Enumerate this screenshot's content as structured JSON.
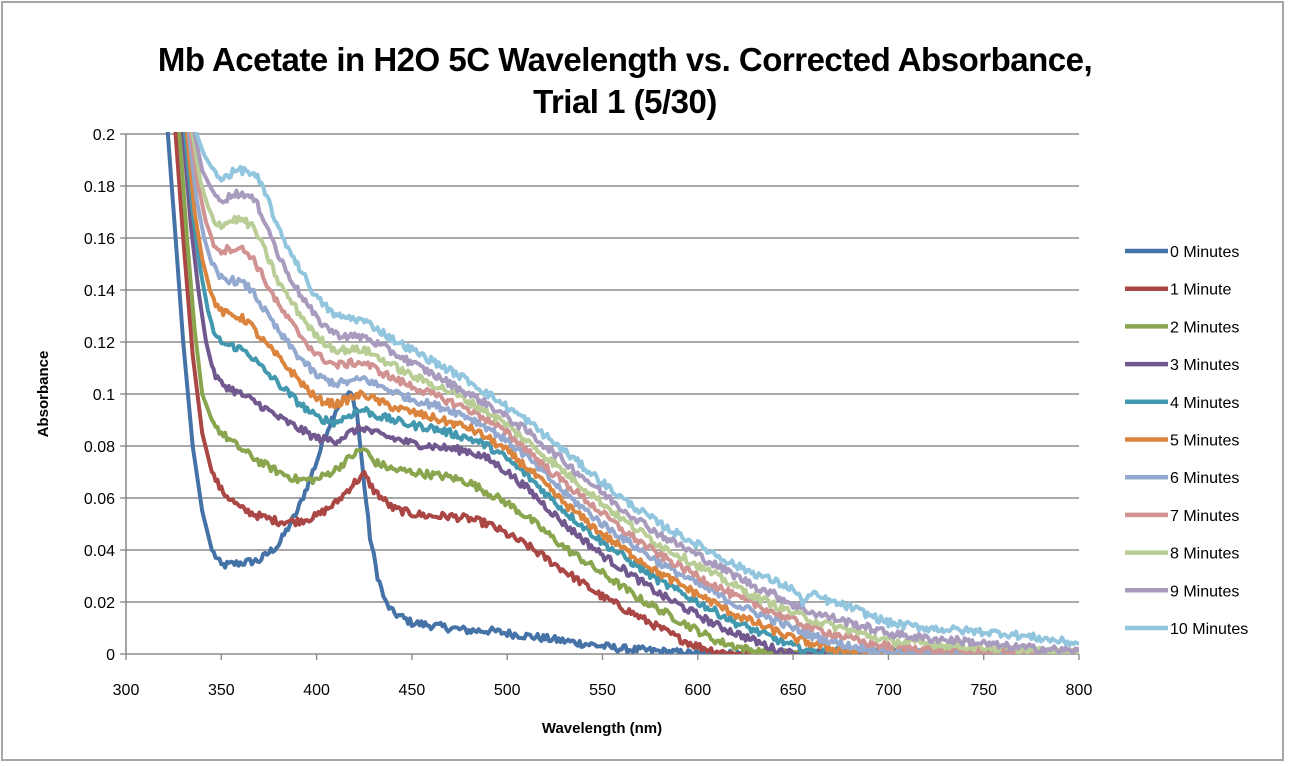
{
  "chart_data": {
    "type": "line",
    "title": "Mb Acetate in H2O 5C Wavelength vs. Corrected Absorbance, Trial 1 (5/30)",
    "title_lines": [
      "Mb Acetate in H2O 5C Wavelength vs. Corrected Absorbance,",
      "Trial 1 (5/30)"
    ],
    "xlabel": "Wavelength (nm)",
    "ylabel": "Absorbance",
    "xlim": [
      300,
      800
    ],
    "ylim": [
      0,
      0.2
    ],
    "x_ticks": [
      300,
      350,
      400,
      450,
      500,
      550,
      600,
      650,
      700,
      750,
      800
    ],
    "x_tick_labels": [
      "300",
      "350",
      "400",
      "450",
      "500",
      "550",
      "600",
      "650",
      "700",
      "750",
      "800"
    ],
    "y_ticks": [
      0,
      0.02,
      0.04,
      0.06,
      0.08,
      0.1,
      0.12,
      0.14,
      0.16,
      0.18,
      0.2
    ],
    "y_tick_labels": [
      "0",
      "0.02",
      "0.04",
      "0.06",
      "0.08",
      "0.1",
      "0.12",
      "0.14",
      "0.16",
      "0.18",
      "0.2"
    ],
    "grid": "horizontal",
    "legend_position": "right",
    "series": [
      {
        "name": "0 Minutes",
        "color": "#4572a7",
        "x": [
          318,
          322,
          326,
          330,
          335,
          340,
          345,
          350,
          360,
          370,
          380,
          390,
          400,
          405,
          410,
          415,
          418,
          421,
          425,
          428,
          432,
          436,
          440,
          450,
          460,
          470,
          480,
          490,
          500,
          510,
          520,
          530,
          540,
          550,
          560,
          570,
          580,
          590,
          600,
          650,
          700,
          750,
          800
        ],
        "y": [
          0.25,
          0.2,
          0.16,
          0.12,
          0.08,
          0.055,
          0.04,
          0.034,
          0.035,
          0.036,
          0.042,
          0.055,
          0.074,
          0.085,
          0.094,
          0.099,
          0.1,
          0.094,
          0.065,
          0.045,
          0.03,
          0.02,
          0.016,
          0.012,
          0.011,
          0.01,
          0.009,
          0.009,
          0.008,
          0.007,
          0.006,
          0.005,
          0.004,
          0.003,
          0.002,
          0.0015,
          0.001,
          0.0005,
          0,
          0,
          0,
          0,
          0
        ]
      },
      {
        "name": "1 Minute",
        "color": "#aa4643",
        "x": [
          322,
          326,
          330,
          335,
          340,
          345,
          350,
          360,
          370,
          380,
          390,
          400,
          410,
          420,
          425,
          430,
          440,
          450,
          460,
          470,
          480,
          490,
          500,
          510,
          520,
          530,
          540,
          550,
          560,
          570,
          580,
          590,
          600,
          610,
          620,
          800
        ],
        "y": [
          0.25,
          0.2,
          0.16,
          0.115,
          0.085,
          0.07,
          0.063,
          0.056,
          0.053,
          0.051,
          0.051,
          0.053,
          0.058,
          0.066,
          0.069,
          0.063,
          0.056,
          0.054,
          0.053,
          0.053,
          0.052,
          0.05,
          0.046,
          0.042,
          0.037,
          0.032,
          0.027,
          0.022,
          0.018,
          0.014,
          0.01,
          0.006,
          0.003,
          0.001,
          0,
          0
        ]
      },
      {
        "name": "2 Minutes",
        "color": "#89a54e",
        "x": [
          324,
          328,
          332,
          336,
          340,
          345,
          350,
          360,
          370,
          380,
          390,
          400,
          410,
          420,
          425,
          430,
          440,
          450,
          460,
          470,
          480,
          490,
          500,
          510,
          520,
          530,
          540,
          550,
          560,
          570,
          580,
          590,
          600,
          610,
          620,
          630,
          640,
          800
        ],
        "y": [
          0.25,
          0.2,
          0.16,
          0.125,
          0.1,
          0.09,
          0.085,
          0.079,
          0.074,
          0.07,
          0.067,
          0.067,
          0.071,
          0.077,
          0.079,
          0.074,
          0.071,
          0.07,
          0.069,
          0.068,
          0.066,
          0.062,
          0.058,
          0.053,
          0.047,
          0.041,
          0.036,
          0.031,
          0.026,
          0.021,
          0.017,
          0.013,
          0.009,
          0.005,
          0.003,
          0.001,
          0,
          0
        ]
      },
      {
        "name": "3 Minutes",
        "color": "#71588f",
        "x": [
          326,
          330,
          334,
          338,
          342,
          346,
          350,
          355,
          360,
          370,
          380,
          390,
          400,
          410,
          420,
          425,
          430,
          440,
          450,
          460,
          470,
          480,
          490,
          500,
          510,
          520,
          530,
          540,
          550,
          560,
          570,
          580,
          590,
          600,
          610,
          620,
          630,
          640,
          650,
          800
        ],
        "y": [
          0.25,
          0.2,
          0.165,
          0.14,
          0.12,
          0.108,
          0.104,
          0.102,
          0.1,
          0.096,
          0.091,
          0.087,
          0.083,
          0.082,
          0.086,
          0.087,
          0.085,
          0.083,
          0.081,
          0.08,
          0.079,
          0.078,
          0.075,
          0.07,
          0.064,
          0.057,
          0.05,
          0.044,
          0.038,
          0.033,
          0.028,
          0.023,
          0.019,
          0.015,
          0.011,
          0.008,
          0.005,
          0.002,
          0,
          0
        ]
      },
      {
        "name": "4 Minutes",
        "color": "#4198af",
        "x": [
          327,
          331,
          335,
          339,
          343,
          347,
          352,
          358,
          364,
          370,
          380,
          390,
          400,
          410,
          420,
          425,
          430,
          440,
          450,
          460,
          470,
          480,
          490,
          500,
          510,
          520,
          530,
          540,
          550,
          560,
          570,
          580,
          590,
          600,
          610,
          620,
          630,
          640,
          650,
          660,
          800
        ],
        "y": [
          0.25,
          0.2,
          0.17,
          0.148,
          0.132,
          0.122,
          0.119,
          0.118,
          0.116,
          0.111,
          0.104,
          0.097,
          0.091,
          0.089,
          0.093,
          0.094,
          0.092,
          0.09,
          0.088,
          0.087,
          0.085,
          0.083,
          0.08,
          0.075,
          0.069,
          0.062,
          0.055,
          0.049,
          0.043,
          0.038,
          0.033,
          0.028,
          0.024,
          0.02,
          0.016,
          0.012,
          0.009,
          0.006,
          0.003,
          0.001,
          0
        ]
      },
      {
        "name": "5 Minutes",
        "color": "#db843d",
        "x": [
          328,
          332,
          336,
          340,
          344,
          348,
          352,
          358,
          364,
          370,
          380,
          390,
          400,
          410,
          420,
          425,
          430,
          440,
          450,
          460,
          470,
          480,
          490,
          500,
          510,
          520,
          530,
          540,
          550,
          560,
          570,
          580,
          590,
          600,
          610,
          620,
          630,
          640,
          650,
          660,
          670,
          680,
          690,
          800
        ],
        "y": [
          0.25,
          0.2,
          0.17,
          0.152,
          0.14,
          0.133,
          0.131,
          0.13,
          0.128,
          0.122,
          0.114,
          0.106,
          0.098,
          0.096,
          0.099,
          0.1,
          0.098,
          0.095,
          0.093,
          0.091,
          0.089,
          0.087,
          0.083,
          0.078,
          0.072,
          0.065,
          0.058,
          0.052,
          0.046,
          0.041,
          0.036,
          0.031,
          0.027,
          0.023,
          0.019,
          0.015,
          0.012,
          0.009,
          0.006,
          0.004,
          0.002,
          0.001,
          0,
          0
        ]
      },
      {
        "name": "6 Minutes",
        "color": "#93a9cf",
        "x": [
          329,
          333,
          337,
          341,
          345,
          349,
          354,
          360,
          366,
          372,
          380,
          390,
          400,
          410,
          420,
          425,
          430,
          440,
          450,
          460,
          470,
          480,
          490,
          500,
          510,
          520,
          530,
          540,
          550,
          560,
          570,
          580,
          590,
          600,
          610,
          620,
          630,
          640,
          650,
          660,
          670,
          680,
          690,
          700,
          720,
          800
        ],
        "y": [
          0.25,
          0.2,
          0.175,
          0.16,
          0.15,
          0.145,
          0.144,
          0.143,
          0.14,
          0.133,
          0.124,
          0.115,
          0.107,
          0.104,
          0.105,
          0.106,
          0.104,
          0.101,
          0.098,
          0.096,
          0.094,
          0.091,
          0.087,
          0.082,
          0.076,
          0.069,
          0.062,
          0.056,
          0.05,
          0.045,
          0.04,
          0.035,
          0.031,
          0.027,
          0.023,
          0.019,
          0.016,
          0.013,
          0.01,
          0.007,
          0.005,
          0.003,
          0.002,
          0.001,
          0,
          0
        ]
      },
      {
        "name": "7 Minutes",
        "color": "#d19392",
        "x": [
          330,
          334,
          338,
          342,
          346,
          350,
          355,
          360,
          366,
          372,
          380,
          390,
          400,
          410,
          420,
          425,
          430,
          440,
          450,
          460,
          470,
          480,
          490,
          500,
          510,
          520,
          530,
          540,
          550,
          560,
          570,
          580,
          590,
          600,
          610,
          620,
          630,
          640,
          650,
          660,
          670,
          680,
          690,
          700,
          720,
          740,
          760,
          800
        ],
        "y": [
          0.25,
          0.2,
          0.18,
          0.166,
          0.158,
          0.155,
          0.156,
          0.156,
          0.153,
          0.145,
          0.134,
          0.124,
          0.115,
          0.111,
          0.112,
          0.112,
          0.11,
          0.106,
          0.103,
          0.1,
          0.097,
          0.094,
          0.09,
          0.085,
          0.079,
          0.072,
          0.066,
          0.06,
          0.054,
          0.048,
          0.043,
          0.038,
          0.034,
          0.03,
          0.026,
          0.022,
          0.019,
          0.016,
          0.013,
          0.01,
          0.008,
          0.006,
          0.004,
          0.003,
          0.002,
          0.001,
          0.0005,
          0
        ]
      },
      {
        "name": "8 Minutes",
        "color": "#b9cd96",
        "x": [
          331,
          335,
          339,
          343,
          347,
          351,
          356,
          361,
          367,
          373,
          380,
          390,
          400,
          410,
          420,
          425,
          430,
          440,
          450,
          460,
          470,
          480,
          490,
          500,
          510,
          520,
          530,
          540,
          550,
          560,
          570,
          580,
          590,
          600,
          610,
          620,
          630,
          640,
          650,
          660,
          670,
          680,
          690,
          700,
          720,
          740,
          760,
          780,
          800
        ],
        "y": [
          0.25,
          0.2,
          0.182,
          0.172,
          0.166,
          0.165,
          0.167,
          0.167,
          0.164,
          0.155,
          0.143,
          0.132,
          0.122,
          0.117,
          0.117,
          0.117,
          0.115,
          0.111,
          0.107,
          0.104,
          0.101,
          0.097,
          0.093,
          0.088,
          0.082,
          0.076,
          0.07,
          0.064,
          0.058,
          0.052,
          0.047,
          0.042,
          0.038,
          0.034,
          0.03,
          0.026,
          0.022,
          0.019,
          0.016,
          0.013,
          0.011,
          0.009,
          0.007,
          0.005,
          0.004,
          0.003,
          0.002,
          0.001,
          0
        ]
      },
      {
        "name": "9 Minutes",
        "color": "#a99bbd",
        "x": [
          332,
          336,
          340,
          344,
          348,
          352,
          357,
          362,
          368,
          374,
          380,
          390,
          400,
          410,
          420,
          425,
          430,
          440,
          450,
          460,
          470,
          480,
          490,
          500,
          510,
          520,
          530,
          540,
          550,
          560,
          570,
          580,
          590,
          600,
          610,
          620,
          630,
          640,
          650,
          660,
          670,
          680,
          690,
          700,
          720,
          740,
          760,
          780,
          800
        ],
        "y": [
          0.25,
          0.2,
          0.186,
          0.18,
          0.175,
          0.175,
          0.177,
          0.177,
          0.174,
          0.165,
          0.153,
          0.14,
          0.129,
          0.123,
          0.122,
          0.122,
          0.12,
          0.116,
          0.112,
          0.108,
          0.104,
          0.1,
          0.096,
          0.091,
          0.086,
          0.08,
          0.074,
          0.068,
          0.062,
          0.056,
          0.051,
          0.046,
          0.042,
          0.038,
          0.034,
          0.03,
          0.026,
          0.023,
          0.019,
          0.016,
          0.014,
          0.012,
          0.01,
          0.008,
          0.006,
          0.005,
          0.003,
          0.002,
          0.001
        ]
      },
      {
        "name": "10 Minutes",
        "color": "#92c5de",
        "x": [
          333,
          337,
          341,
          345,
          349,
          353,
          358,
          363,
          369,
          375,
          380,
          390,
          400,
          410,
          420,
          425,
          430,
          440,
          450,
          460,
          470,
          480,
          490,
          500,
          510,
          520,
          530,
          540,
          550,
          560,
          570,
          580,
          590,
          600,
          610,
          620,
          630,
          640,
          650,
          655,
          660,
          670,
          680,
          690,
          700,
          720,
          740,
          760,
          780,
          800
        ],
        "y": [
          0.25,
          0.2,
          0.192,
          0.187,
          0.183,
          0.184,
          0.186,
          0.186,
          0.183,
          0.174,
          0.163,
          0.15,
          0.137,
          0.13,
          0.129,
          0.128,
          0.126,
          0.121,
          0.117,
          0.113,
          0.109,
          0.105,
          0.1,
          0.095,
          0.09,
          0.084,
          0.078,
          0.072,
          0.066,
          0.06,
          0.055,
          0.05,
          0.046,
          0.042,
          0.038,
          0.034,
          0.031,
          0.028,
          0.025,
          0.02,
          0.023,
          0.02,
          0.018,
          0.015,
          0.012,
          0.01,
          0.009,
          0.008,
          0.006,
          0.004
        ]
      }
    ]
  }
}
